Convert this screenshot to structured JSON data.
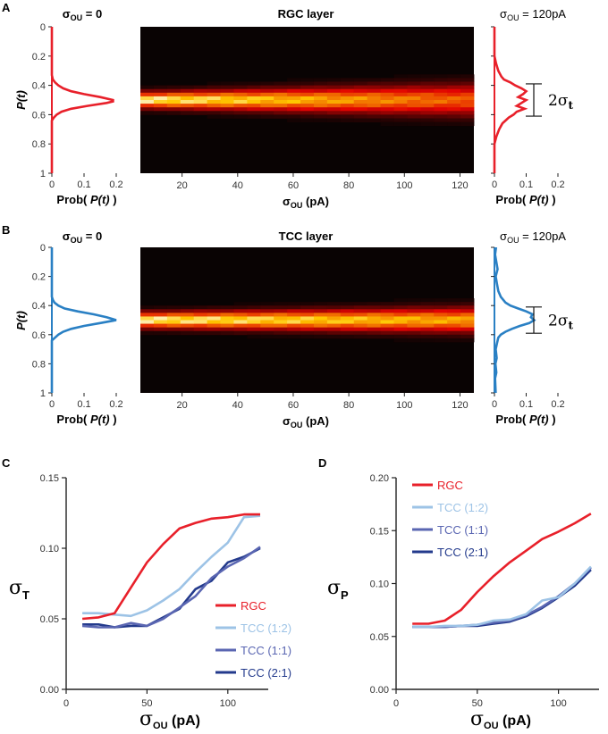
{
  "colors": {
    "rgc": "#e8202a",
    "tcc_1_2": "#9dc3e6",
    "tcc_1_1": "#5a66b2",
    "tcc_2_1": "#233a8c",
    "tcc_hist": "#2a80c4",
    "heatmap_bg": "#090303"
  },
  "chart_data": [
    {
      "id": "A-left",
      "panel": "A",
      "type": "line",
      "title_main": "σ",
      "title_sub": "OU",
      "title_tail": " = 0",
      "ylabel": "P(t)",
      "xlabel_prefix": "Prob( ",
      "xlabel_italic": "P(t)",
      "xlabel_suffix": " )",
      "xlim": [
        0,
        0.2
      ],
      "ylim": [
        0,
        1
      ],
      "xticks": [
        "0",
        "0.1",
        "0.2"
      ],
      "yticks": [
        "0",
        "0.2",
        "0.4",
        "0.6",
        "0.8",
        "1"
      ],
      "p": [
        0.0,
        0.33,
        0.36,
        0.38,
        0.4,
        0.42,
        0.44,
        0.46,
        0.48,
        0.5,
        0.51,
        0.52,
        0.54,
        0.56,
        0.58,
        0.6,
        0.62,
        0.64,
        1.0
      ],
      "prob": [
        0,
        0,
        0.003,
        0.01,
        0.02,
        0.035,
        0.06,
        0.1,
        0.15,
        0.19,
        0.19,
        0.17,
        0.11,
        0.06,
        0.03,
        0.015,
        0.006,
        0,
        0
      ]
    },
    {
      "id": "A-heatmap",
      "panel": "A",
      "type": "heatmap",
      "title": "RGC layer",
      "xlabel_main": "σ",
      "xlabel_sub": "OU",
      "xlabel_tail": " (pA)",
      "xlim": [
        5,
        125
      ],
      "ylim": [
        0,
        1
      ],
      "xticks": [
        20,
        40,
        60,
        80,
        100,
        120
      ],
      "columns": 25,
      "rows": 40,
      "center": 0.5,
      "width_start": 0.035,
      "width_end": 0.07,
      "peak_start": 1.0,
      "peak_end": 0.62
    },
    {
      "id": "A-right",
      "panel": "A",
      "type": "line",
      "title_main": "σ",
      "title_sub": "OU",
      "title_tail": " = 120pA",
      "xlabel_prefix": "Prob( ",
      "xlabel_italic": "P(t)",
      "xlabel_suffix": " )",
      "xlim": [
        0,
        0.2
      ],
      "ylim": [
        0,
        1
      ],
      "xticks": [
        "0",
        "0.1",
        "0.2"
      ],
      "annotation_prefix": "2",
      "annotation_main": "σ",
      "annotation_sub": "t",
      "annotation_range": [
        0.39,
        0.61
      ],
      "p": [
        0.0,
        0.2,
        0.25,
        0.3,
        0.34,
        0.36,
        0.38,
        0.4,
        0.42,
        0.44,
        0.46,
        0.48,
        0.5,
        0.52,
        0.54,
        0.56,
        0.58,
        0.6,
        0.62,
        0.64,
        0.66,
        0.7,
        0.75,
        0.8,
        1.0
      ],
      "prob": [
        0,
        0,
        0.005,
        0.012,
        0.022,
        0.03,
        0.05,
        0.065,
        0.085,
        0.1,
        0.09,
        0.075,
        0.1,
        0.085,
        0.07,
        0.095,
        0.07,
        0.06,
        0.045,
        0.035,
        0.025,
        0.015,
        0.006,
        0,
        0
      ]
    },
    {
      "id": "B-left",
      "panel": "B",
      "type": "line",
      "title_main": "σ",
      "title_sub": "OU",
      "title_tail": " = 0",
      "ylabel": "P(t)",
      "xlabel_prefix": "Prob( ",
      "xlabel_italic": "P(t)",
      "xlabel_suffix": " )",
      "xlim": [
        0,
        0.2
      ],
      "ylim": [
        0,
        1
      ],
      "xticks": [
        "0",
        "0.1",
        "0.2"
      ],
      "yticks": [
        "0",
        "0.2",
        "0.4",
        "0.6",
        "0.8",
        "1"
      ],
      "p": [
        0.0,
        0.34,
        0.36,
        0.38,
        0.4,
        0.42,
        0.44,
        0.46,
        0.48,
        0.5,
        0.52,
        0.54,
        0.56,
        0.58,
        0.6,
        0.62,
        0.64,
        1.0
      ],
      "prob": [
        0,
        0,
        0.003,
        0.008,
        0.02,
        0.04,
        0.08,
        0.13,
        0.17,
        0.2,
        0.15,
        0.1,
        0.06,
        0.035,
        0.02,
        0.01,
        0,
        0
      ]
    },
    {
      "id": "B-heatmap",
      "panel": "B",
      "type": "heatmap",
      "title": "TCC layer",
      "xlabel_main": "σ",
      "xlabel_sub": "OU",
      "xlabel_tail": " (pA)",
      "xlim": [
        5,
        125
      ],
      "ylim": [
        0,
        1
      ],
      "xticks": [
        20,
        40,
        60,
        80,
        100,
        120
      ],
      "columns": 25,
      "rows": 40,
      "center": 0.5,
      "width_start": 0.035,
      "width_end": 0.055,
      "peak_start": 1.0,
      "peak_end": 0.78
    },
    {
      "id": "B-right",
      "panel": "B",
      "type": "line",
      "title_main": "σ",
      "title_sub": "OU",
      "title_tail": " = 120pA",
      "xlabel_prefix": "Prob( ",
      "xlabel_italic": "P(t)",
      "xlabel_suffix": " )",
      "xlim": [
        0,
        0.2
      ],
      "ylim": [
        0,
        1
      ],
      "xticks": [
        "0",
        "0.1",
        "0.2"
      ],
      "annotation_prefix": "2",
      "annotation_main": "σ",
      "annotation_sub": "t",
      "annotation_range": [
        0.41,
        0.59
      ],
      "p": [
        0.0,
        0.05,
        0.1,
        0.15,
        0.2,
        0.25,
        0.3,
        0.34,
        0.38,
        0.4,
        0.42,
        0.44,
        0.46,
        0.48,
        0.5,
        0.52,
        0.54,
        0.56,
        0.58,
        0.6,
        0.62,
        0.66,
        0.7,
        0.76,
        0.8,
        0.86,
        0.9,
        1.0
      ],
      "prob": [
        0.005,
        0.002,
        0.006,
        0.01,
        0.004,
        0.008,
        0.012,
        0.02,
        0.035,
        0.05,
        0.075,
        0.1,
        0.12,
        0.115,
        0.125,
        0.11,
        0.08,
        0.055,
        0.035,
        0.02,
        0.012,
        0.008,
        0.004,
        0.007,
        0.003,
        0.006,
        0.002,
        0.004
      ]
    },
    {
      "id": "C",
      "panel": "C",
      "type": "line",
      "ylabel_main": "σ",
      "ylabel_sub": "T",
      "xlabel_main": "σ",
      "xlabel_sub": "OU",
      "xlabel_tail": "  (pA)",
      "xlim": [
        0,
        125
      ],
      "ylim": [
        0,
        0.15
      ],
      "xticks": [
        "0",
        "50",
        "100"
      ],
      "yticks": [
        "0.00",
        "0.05",
        "0.10",
        "0.15"
      ],
      "legend_position": "bottom-right",
      "x": [
        10,
        20,
        30,
        40,
        50,
        60,
        70,
        80,
        90,
        100,
        110,
        120
      ],
      "series": [
        {
          "name": "RGC",
          "color_key": "rgc",
          "values": [
            0.05,
            0.051,
            0.054,
            0.072,
            0.09,
            0.103,
            0.114,
            0.118,
            0.121,
            0.122,
            0.124,
            0.124
          ]
        },
        {
          "name": "TCC (1:2)",
          "color_key": "tcc_1_2",
          "values": [
            0.054,
            0.054,
            0.053,
            0.052,
            0.056,
            0.063,
            0.071,
            0.083,
            0.094,
            0.104,
            0.122,
            0.123
          ]
        },
        {
          "name": "TCC (1:1)",
          "color_key": "tcc_1_1",
          "values": [
            0.045,
            0.044,
            0.044,
            0.047,
            0.045,
            0.05,
            0.058,
            0.066,
            0.079,
            0.087,
            0.093,
            0.101
          ]
        },
        {
          "name": "TCC (2:1)",
          "color_key": "tcc_2_1",
          "values": [
            0.046,
            0.046,
            0.044,
            0.045,
            0.045,
            0.051,
            0.057,
            0.071,
            0.077,
            0.09,
            0.094,
            0.1
          ]
        }
      ]
    },
    {
      "id": "D",
      "panel": "D",
      "type": "line",
      "ylabel_main": "σ",
      "ylabel_sub": "P",
      "xlabel_main": "σ",
      "xlabel_sub": "OU",
      "xlabel_tail": "  (pA)",
      "xlim": [
        0,
        125
      ],
      "ylim": [
        0,
        0.2
      ],
      "xticks": [
        "0",
        "50",
        "100"
      ],
      "yticks": [
        "0.00",
        "0.05",
        "0.10",
        "0.15",
        "0.20"
      ],
      "legend_position": "top-left",
      "x": [
        10,
        20,
        30,
        40,
        50,
        60,
        70,
        80,
        90,
        100,
        110,
        120
      ],
      "series": [
        {
          "name": "RGC",
          "color_key": "rgc",
          "values": [
            0.062,
            0.062,
            0.065,
            0.075,
            0.092,
            0.107,
            0.12,
            0.131,
            0.142,
            0.149,
            0.157,
            0.166
          ]
        },
        {
          "name": "TCC (1:2)",
          "color_key": "tcc_1_2",
          "values": [
            0.059,
            0.059,
            0.06,
            0.06,
            0.061,
            0.065,
            0.066,
            0.071,
            0.084,
            0.087,
            0.1,
            0.116
          ]
        },
        {
          "name": "TCC (1:1)",
          "color_key": "tcc_1_1",
          "values": [
            0.059,
            0.059,
            0.059,
            0.06,
            0.061,
            0.063,
            0.065,
            0.07,
            0.078,
            0.088,
            0.1,
            0.115
          ]
        },
        {
          "name": "TCC (2:1)",
          "color_key": "tcc_2_1",
          "values": [
            0.059,
            0.059,
            0.059,
            0.06,
            0.06,
            0.062,
            0.064,
            0.069,
            0.077,
            0.087,
            0.098,
            0.113
          ]
        }
      ]
    }
  ]
}
